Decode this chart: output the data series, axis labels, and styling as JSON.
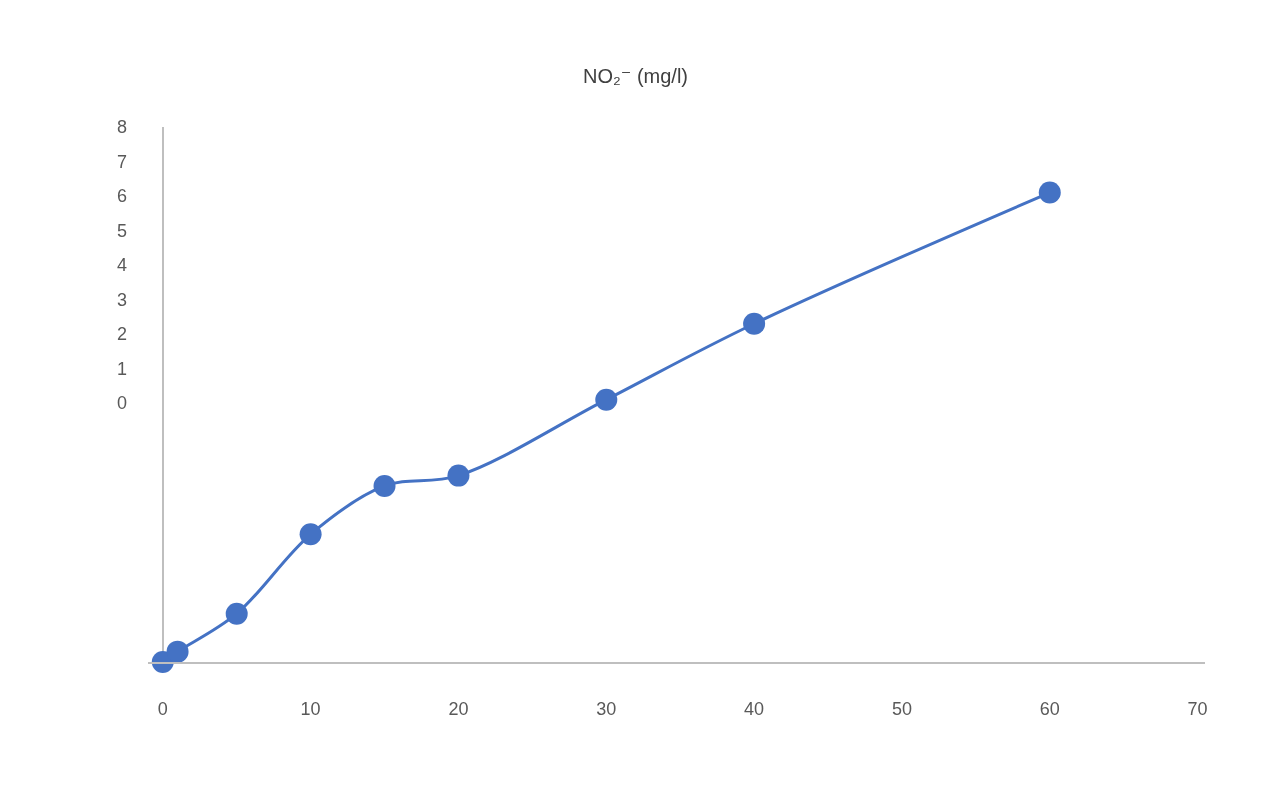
{
  "chart_data": {
    "type": "line",
    "title": "NO₂⁻ (mg/l)",
    "x": [
      0,
      1,
      5,
      10,
      15,
      20,
      30,
      40,
      60
    ],
    "series": [
      {
        "color": "#4472c4",
        "values": [
          -7.5,
          -7.2,
          -6.1,
          -3.8,
          -2.4,
          -2.1,
          0.1,
          2.3,
          6.1
        ]
      }
    ],
    "xlim": [
      -1,
      70.5
    ],
    "xticks": [
      0,
      10,
      20,
      30,
      40,
      50,
      60,
      70
    ],
    "ylim": [
      -7.5,
      8
    ],
    "yticks": [
      0,
      1,
      2,
      3,
      4,
      5,
      6,
      7,
      8
    ],
    "grid": false,
    "legend": false,
    "marker": "circle",
    "line_style": "solid"
  }
}
